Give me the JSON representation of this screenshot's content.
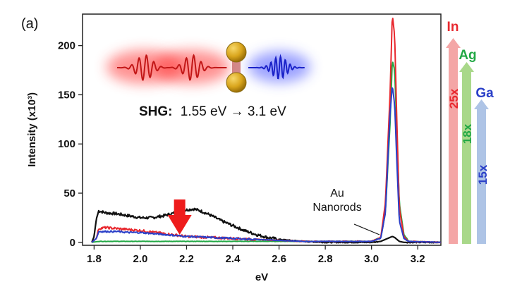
{
  "panel_label": "(a)",
  "inset": {
    "shg_prefix": "SHG:",
    "shg_text": "1.55 eV → 3.1 eV"
  },
  "annotation": {
    "au_line1": "Au",
    "au_line2": "Nanorods"
  },
  "enhancements": [
    {
      "metal": "In",
      "factor": "25x",
      "color": "#e8282e",
      "bar_color": "#f4a6a6"
    },
    {
      "metal": "Ag",
      "factor": "18x",
      "color": "#22a845",
      "bar_color": "#a9d88a"
    },
    {
      "metal": "Ga",
      "factor": "15x",
      "color": "#2a3fc8",
      "bar_color": "#aec4e6"
    }
  ],
  "chart_data": {
    "type": "line",
    "xlabel": "eV",
    "ylabel": "Intensity (x10³)",
    "xlim": [
      1.75,
      3.3
    ],
    "ylim": [
      -3,
      232
    ],
    "x_ticks": [
      "1.8",
      "2.0",
      "2.2",
      "2.4",
      "2.6",
      "2.8",
      "3.0",
      "3.2"
    ],
    "y_ticks": [
      "0",
      "50",
      "100",
      "150",
      "200"
    ],
    "arrow_x": 2.17,
    "series": [
      {
        "color": "#111111",
        "width": 2.2,
        "noise": 1.4,
        "x": [
          1.79,
          1.8,
          1.81,
          1.82,
          1.85,
          1.9,
          1.95,
          2.0,
          2.05,
          2.1,
          2.15,
          2.2,
          2.23,
          2.26,
          2.3,
          2.35,
          2.4,
          2.45,
          2.5,
          2.55,
          2.6,
          2.65,
          2.7,
          2.8,
          2.9,
          3.0,
          3.04,
          3.06,
          3.08,
          3.09,
          3.1,
          3.11,
          3.12,
          3.14,
          3.16,
          3.2,
          3.3
        ],
        "y": [
          0,
          6,
          24,
          32,
          30,
          29,
          27,
          25,
          25,
          27,
          30,
          33,
          34,
          32,
          28,
          22,
          17,
          12,
          8,
          5,
          3,
          2,
          1,
          0,
          0,
          0,
          1,
          3,
          5,
          6,
          5,
          3,
          1,
          0,
          0,
          0,
          0
        ]
      },
      {
        "color": "#22a845",
        "width": 2.0,
        "noise": 0.5,
        "x": [
          1.79,
          1.82,
          2.0,
          2.4,
          2.8,
          3.0,
          3.04,
          3.06,
          3.08,
          3.09,
          3.1,
          3.11,
          3.12,
          3.14,
          3.16,
          3.3
        ],
        "y": [
          0,
          1,
          1,
          1,
          1,
          1,
          5,
          30,
          120,
          185,
          175,
          110,
          40,
          8,
          1,
          0
        ]
      },
      {
        "color": "#e8282e",
        "width": 2.0,
        "noise": 1.2,
        "x": [
          1.79,
          1.81,
          1.82,
          1.85,
          1.9,
          1.95,
          2.0,
          2.1,
          2.2,
          2.3,
          2.4,
          2.5,
          2.6,
          2.7,
          2.8,
          3.0,
          3.04,
          3.06,
          3.08,
          3.09,
          3.1,
          3.11,
          3.12,
          3.14,
          3.16,
          3.3
        ],
        "y": [
          0,
          4,
          14,
          15,
          14,
          13,
          12,
          9,
          6,
          5,
          4,
          3,
          2,
          1,
          1,
          1,
          5,
          40,
          150,
          232,
          210,
          120,
          35,
          6,
          1,
          0
        ]
      },
      {
        "color": "#2a3fc8",
        "width": 2.0,
        "noise": 0.8,
        "x": [
          1.79,
          1.81,
          1.82,
          1.85,
          1.9,
          1.95,
          2.0,
          2.1,
          2.2,
          2.3,
          2.4,
          2.5,
          2.6,
          2.7,
          2.8,
          3.0,
          3.04,
          3.06,
          3.08,
          3.09,
          3.1,
          3.11,
          3.12,
          3.14,
          3.16,
          3.3
        ],
        "y": [
          0,
          4,
          11,
          11,
          11,
          10,
          10,
          8,
          6,
          5,
          4,
          3,
          2,
          1,
          1,
          1,
          4,
          30,
          130,
          160,
          140,
          80,
          22,
          4,
          1,
          0
        ]
      }
    ]
  }
}
